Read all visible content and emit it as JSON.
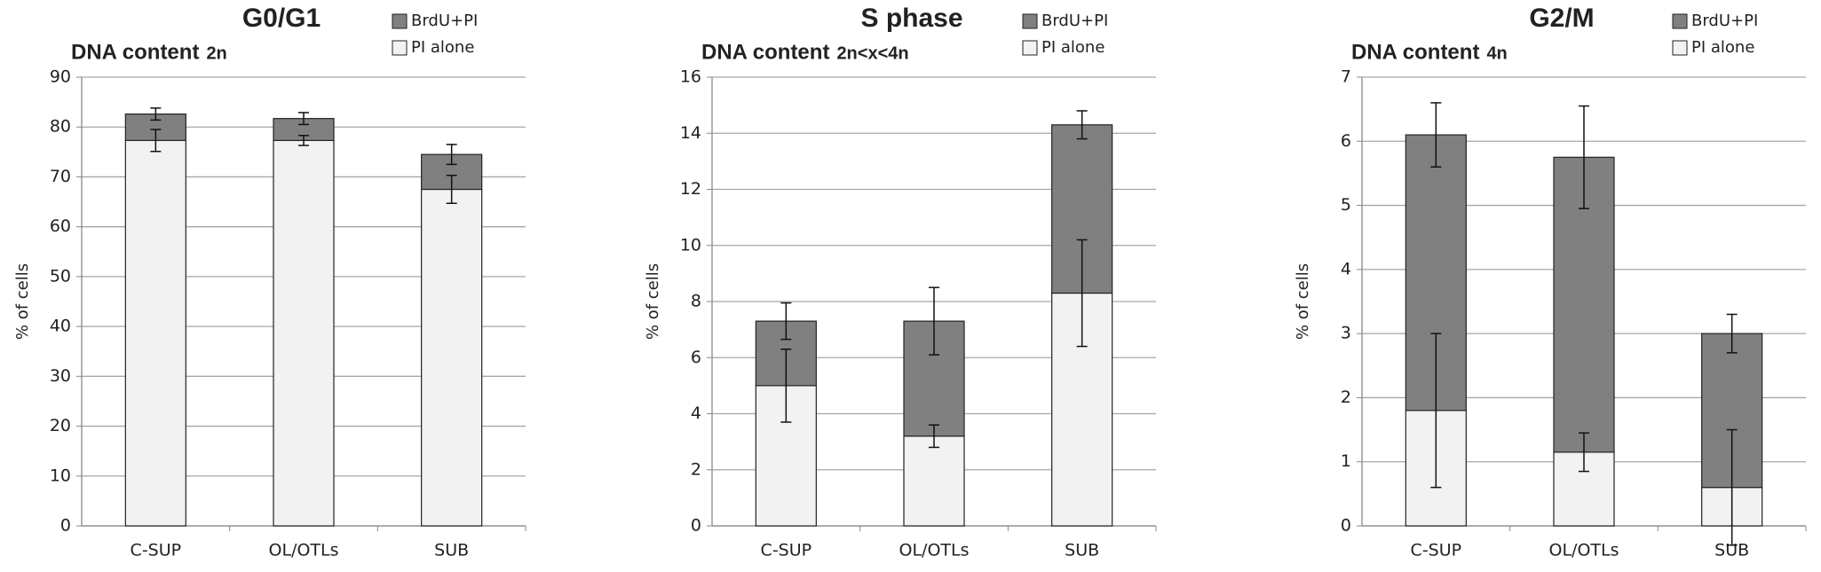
{
  "chart_data": [
    {
      "type": "bar",
      "stacked": true,
      "title": "G0/G1",
      "subtitle": "DNA content",
      "subtitle_suffix": "2n",
      "y_label": "% of cells",
      "categories": [
        "C-SUP",
        "OL/OTLs",
        "SUB"
      ],
      "series": [
        {
          "name": "PI alone",
          "color": "#f2f2f2",
          "values": [
            77.3,
            77.3,
            67.5
          ],
          "errors": [
            2.2,
            1.0,
            2.8
          ]
        },
        {
          "name": "BrdU+PI",
          "color": "#808080",
          "values": [
            5.3,
            4.4,
            7.0
          ],
          "errors": [
            1.2,
            1.2,
            2.0
          ]
        }
      ],
      "ylim": [
        0,
        90
      ],
      "yticks": [
        0,
        10,
        20,
        30,
        40,
        50,
        60,
        70,
        80,
        90
      ],
      "grid": true
    },
    {
      "type": "bar",
      "stacked": true,
      "title": "S phase",
      "subtitle": "DNA content",
      "subtitle_suffix": "2n<x<4n",
      "y_label": "% of cells",
      "categories": [
        "C-SUP",
        "OL/OTLs",
        "SUB"
      ],
      "series": [
        {
          "name": "PI alone",
          "color": "#f2f2f2",
          "values": [
            5.0,
            3.2,
            8.3
          ],
          "errors": [
            1.3,
            0.4,
            1.9
          ]
        },
        {
          "name": "BrdU+PI",
          "color": "#808080",
          "values": [
            2.3,
            4.1,
            6.0
          ],
          "errors": [
            0.65,
            1.2,
            0.5
          ]
        }
      ],
      "ylim": [
        0,
        16
      ],
      "yticks": [
        0,
        2,
        4,
        6,
        8,
        10,
        12,
        14,
        16
      ],
      "grid": true
    },
    {
      "type": "bar",
      "stacked": true,
      "title": "G2/M",
      "subtitle": "DNA content",
      "subtitle_suffix": "4n",
      "y_label": "% of cells",
      "categories": [
        "C-SUP",
        "OL/OTLs",
        "SUB"
      ],
      "series": [
        {
          "name": "PI alone",
          "color": "#f2f2f2",
          "values": [
            1.8,
            1.15,
            0.6
          ],
          "errors": [
            1.2,
            0.3,
            0.9
          ]
        },
        {
          "name": "BrdU+PI",
          "color": "#808080",
          "values": [
            4.3,
            4.6,
            2.4
          ],
          "errors": [
            0.5,
            0.8,
            0.3
          ]
        }
      ],
      "ylim": [
        0,
        7
      ],
      "yticks": [
        0,
        1,
        2,
        3,
        4,
        5,
        6,
        7
      ],
      "grid": true
    }
  ]
}
